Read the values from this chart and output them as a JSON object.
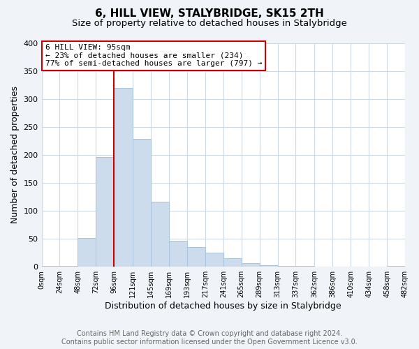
{
  "title": "6, HILL VIEW, STALYBRIDGE, SK15 2TH",
  "subtitle": "Size of property relative to detached houses in Stalybridge",
  "xlabel": "Distribution of detached houses by size in Stalybridge",
  "ylabel": "Number of detached properties",
  "bar_edges": [
    0,
    24,
    48,
    72,
    96,
    121,
    145,
    169,
    193,
    217,
    241,
    265,
    289,
    313,
    337,
    362,
    386,
    410,
    434,
    458,
    482
  ],
  "bar_heights": [
    2,
    2,
    51,
    196,
    319,
    228,
    116,
    46,
    35,
    25,
    15,
    6,
    3,
    2,
    1,
    0,
    0,
    0,
    0,
    2
  ],
  "bar_color": "#ccdcec",
  "bar_edge_color": "#a8c4dc",
  "vline_x": 96,
  "vline_color": "#cc0000",
  "annotation_title": "6 HILL VIEW: 95sqm",
  "annotation_line1": "← 23% of detached houses are smaller (234)",
  "annotation_line2": "77% of semi-detached houses are larger (797) →",
  "annotation_box_color": "#ffffff",
  "annotation_box_edge": "#cc0000",
  "ylim": [
    0,
    400
  ],
  "xlim": [
    0,
    482
  ],
  "tick_labels": [
    "0sqm",
    "24sqm",
    "48sqm",
    "72sqm",
    "96sqm",
    "121sqm",
    "145sqm",
    "169sqm",
    "193sqm",
    "217sqm",
    "241sqm",
    "265sqm",
    "289sqm",
    "313sqm",
    "337sqm",
    "362sqm",
    "386sqm",
    "410sqm",
    "434sqm",
    "458sqm",
    "482sqm"
  ],
  "tick_positions": [
    0,
    24,
    48,
    72,
    96,
    121,
    145,
    169,
    193,
    217,
    241,
    265,
    289,
    313,
    337,
    362,
    386,
    410,
    434,
    458,
    482
  ],
  "footer_line1": "Contains HM Land Registry data © Crown copyright and database right 2024.",
  "footer_line2": "Contains public sector information licensed under the Open Government Licence v3.0.",
  "bg_color": "#f0f4f8",
  "plot_bg_color": "#ffffff",
  "grid_color": "#d0d8e0",
  "title_fontsize": 11,
  "subtitle_fontsize": 9.5,
  "footer_fontsize": 7,
  "yticks": [
    0,
    50,
    100,
    150,
    200,
    250,
    300,
    350,
    400
  ],
  "ytick_labels": [
    "0",
    "50",
    "100",
    "150",
    "200",
    "250",
    "300",
    "350",
    "400"
  ]
}
